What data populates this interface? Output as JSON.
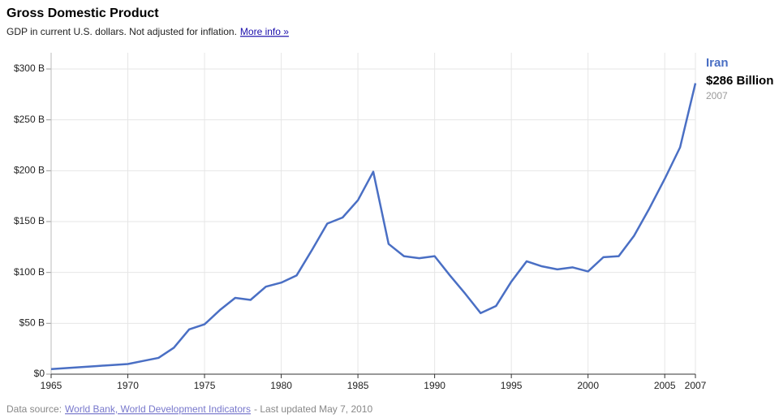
{
  "chart_data": {
    "type": "line",
    "title": "Gross Domestic Product",
    "subtitle": "GDP in current U.S. dollars. Not adjusted for inflation.",
    "more_info": "More info »",
    "source_label": "Data source:",
    "source": "World Bank, World Development Indicators",
    "updated": "- Last updated May 7, 2010",
    "x": [
      1965,
      1966,
      1967,
      1968,
      1969,
      1970,
      1971,
      1972,
      1973,
      1974,
      1975,
      1976,
      1977,
      1978,
      1979,
      1980,
      1981,
      1982,
      1983,
      1984,
      1985,
      1986,
      1987,
      1988,
      1989,
      1990,
      1991,
      1992,
      1993,
      1994,
      1995,
      1996,
      1997,
      1998,
      1999,
      2000,
      2001,
      2002,
      2003,
      2004,
      2005,
      2006,
      2007
    ],
    "series": [
      {
        "name": "Iran",
        "color": "#4a6fc4",
        "values": [
          5,
          6,
          7,
          8,
          9,
          10,
          13,
          16,
          26,
          44,
          49,
          63,
          75,
          73,
          86,
          90,
          97,
          122,
          148,
          154,
          171,
          199,
          128,
          116,
          114,
          116,
          97,
          79,
          60,
          67,
          91,
          111,
          106,
          103,
          105,
          101,
          115,
          116,
          136,
          163,
          192,
          223,
          286
        ],
        "value_labels": [
          null,
          null,
          null,
          null,
          null,
          null,
          null,
          null,
          null,
          null,
          null,
          null,
          null,
          null,
          null,
          null,
          null,
          null,
          null,
          null,
          null,
          null,
          null,
          null,
          null,
          null,
          null,
          null,
          null,
          null,
          null,
          null,
          null,
          null,
          null,
          null,
          null,
          null,
          null,
          null,
          null,
          null,
          "$286 Billion"
        ]
      }
    ],
    "xlim": [
      1965,
      2007
    ],
    "xticks": [
      1965,
      1970,
      1975,
      1980,
      1985,
      1990,
      1995,
      2000,
      2005,
      2007
    ],
    "ylim": [
      0,
      300
    ],
    "yticks": [
      {
        "value": 0,
        "label": "$0"
      },
      {
        "value": 50,
        "label": "$50 B"
      },
      {
        "value": 100,
        "label": "$100 B"
      },
      {
        "value": 150,
        "label": "$150 B"
      },
      {
        "value": 200,
        "label": "$200 B"
      },
      {
        "value": 250,
        "label": "$250 B"
      },
      {
        "value": 300,
        "label": "$300 B"
      }
    ],
    "grid": true
  }
}
